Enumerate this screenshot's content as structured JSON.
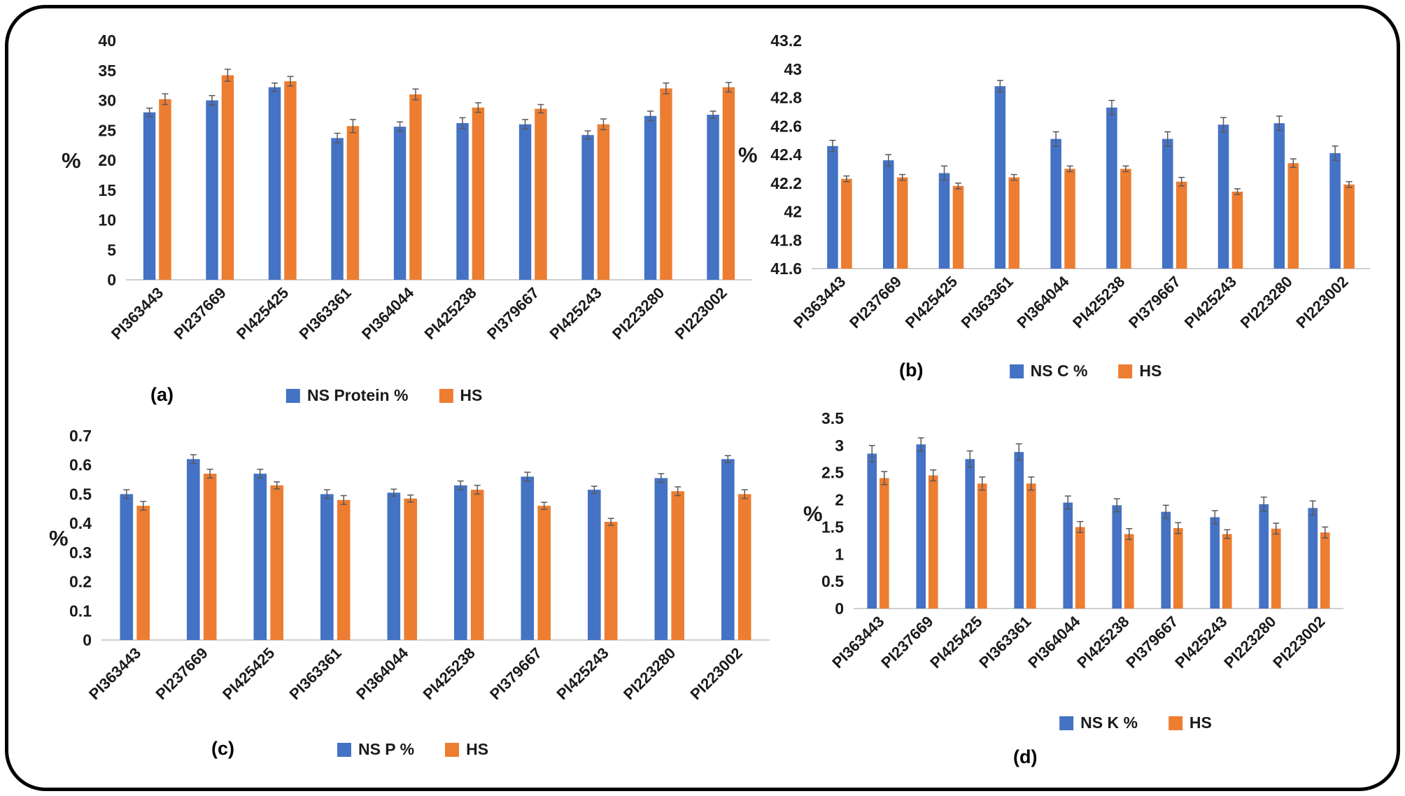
{
  "colors": {
    "ns_series": "#4472C4",
    "hs_series": "#ED7D31",
    "error_bar": "#595959",
    "axis_line": "#bfbfbf"
  },
  "chart_data": [
    {
      "type": "bar",
      "panel_label": "(a)",
      "ylabel": "%",
      "ylim": [
        0,
        40
      ],
      "ytick_labels": [
        "0",
        "5",
        "10",
        "15",
        "20",
        "25",
        "30",
        "35",
        "40"
      ],
      "grid": false,
      "legend_position": "bottom",
      "categories": [
        "PI363443",
        "PI237669",
        "PI425425",
        "PI363361",
        "PI364044",
        "PI425238",
        "PI379667",
        "PI425243",
        "PI223280",
        "PI223002"
      ],
      "series": [
        {
          "name": "NS Protein %",
          "color": "#4472C4",
          "values": [
            28.0,
            30.0,
            32.2,
            23.7,
            25.6,
            26.2,
            26.0,
            24.2,
            27.4,
            27.6
          ],
          "errors": [
            0.7,
            0.8,
            0.7,
            0.8,
            0.8,
            0.9,
            0.8,
            0.7,
            0.8,
            0.6
          ]
        },
        {
          "name": "HS",
          "color": "#ED7D31",
          "values": [
            30.2,
            34.2,
            33.2,
            25.7,
            31.0,
            28.8,
            28.6,
            26.0,
            32.0,
            32.2
          ],
          "errors": [
            0.9,
            1.0,
            0.8,
            1.1,
            0.9,
            0.8,
            0.7,
            0.9,
            0.9,
            0.8
          ]
        }
      ]
    },
    {
      "type": "bar",
      "panel_label": "(b)",
      "ylabel": "%",
      "ylim": [
        41.6,
        43.2
      ],
      "ytick_labels": [
        "41.6",
        "41.8",
        "42",
        "42.2",
        "42.4",
        "42.6",
        "42.8",
        "43",
        "43.2"
      ],
      "grid": false,
      "legend_position": "bottom",
      "categories": [
        "PI363443",
        "PI237669",
        "PI425425",
        "PI363361",
        "PI364044",
        "PI425238",
        "PI379667",
        "PI425243",
        "PI223280",
        "PI223002"
      ],
      "series": [
        {
          "name": "NS C %",
          "color": "#4472C4",
          "values": [
            42.46,
            42.36,
            42.27,
            42.88,
            42.51,
            42.73,
            42.51,
            42.61,
            42.62,
            42.41
          ],
          "errors": [
            0.04,
            0.04,
            0.05,
            0.04,
            0.05,
            0.05,
            0.05,
            0.05,
            0.05,
            0.05
          ]
        },
        {
          "name": "HS",
          "color": "#ED7D31",
          "values": [
            42.23,
            42.24,
            42.18,
            42.24,
            42.3,
            42.3,
            42.21,
            42.14,
            42.34,
            42.19
          ],
          "errors": [
            0.02,
            0.02,
            0.02,
            0.02,
            0.02,
            0.02,
            0.03,
            0.02,
            0.03,
            0.02
          ]
        }
      ]
    },
    {
      "type": "bar",
      "panel_label": "(c)",
      "ylabel": "%",
      "ylim": [
        0,
        0.7
      ],
      "ytick_labels": [
        "0",
        "0.1",
        "0.2",
        "0.3",
        "0.4",
        "0.5",
        "0.6",
        "0.7"
      ],
      "grid": false,
      "legend_position": "bottom",
      "categories": [
        "PI363443",
        "PI237669",
        "PI425425",
        "PI363361",
        "PI364044",
        "PI425238",
        "PI379667",
        "PI425243",
        "PI223280",
        "PI223002"
      ],
      "series": [
        {
          "name": "NS P %",
          "color": "#4472C4",
          "values": [
            0.5,
            0.62,
            0.57,
            0.5,
            0.505,
            0.53,
            0.56,
            0.515,
            0.555,
            0.62
          ],
          "errors": [
            0.015,
            0.015,
            0.015,
            0.015,
            0.012,
            0.015,
            0.015,
            0.012,
            0.015,
            0.012
          ]
        },
        {
          "name": "HS",
          "color": "#ED7D31",
          "values": [
            0.46,
            0.57,
            0.53,
            0.48,
            0.485,
            0.515,
            0.46,
            0.405,
            0.51,
            0.5
          ],
          "errors": [
            0.015,
            0.015,
            0.012,
            0.015,
            0.012,
            0.015,
            0.012,
            0.012,
            0.015,
            0.015
          ]
        }
      ]
    },
    {
      "type": "bar",
      "panel_label": "(d)",
      "ylabel": "%",
      "ylim": [
        0,
        3.5
      ],
      "ytick_labels": [
        "0",
        "0.5",
        "1",
        "1.5",
        "2",
        "2.5",
        "3",
        "3.5"
      ],
      "grid": false,
      "legend_position": "bottom",
      "categories": [
        "PI363443",
        "PI237669",
        "PI425425",
        "PI363361",
        "PI364044",
        "PI425238",
        "PI379667",
        "PI425243",
        "PI223280",
        "PI223002"
      ],
      "series": [
        {
          "name": "NS K %",
          "color": "#4472C4",
          "values": [
            2.85,
            3.02,
            2.75,
            2.88,
            1.95,
            1.9,
            1.78,
            1.68,
            1.92,
            1.85
          ],
          "errors": [
            0.15,
            0.12,
            0.15,
            0.15,
            0.12,
            0.12,
            0.12,
            0.12,
            0.13,
            0.13
          ]
        },
        {
          "name": "HS",
          "color": "#ED7D31",
          "values": [
            2.4,
            2.45,
            2.3,
            2.3,
            1.5,
            1.37,
            1.48,
            1.37,
            1.47,
            1.4
          ],
          "errors": [
            0.12,
            0.1,
            0.12,
            0.12,
            0.1,
            0.1,
            0.1,
            0.08,
            0.1,
            0.1
          ]
        }
      ]
    }
  ]
}
